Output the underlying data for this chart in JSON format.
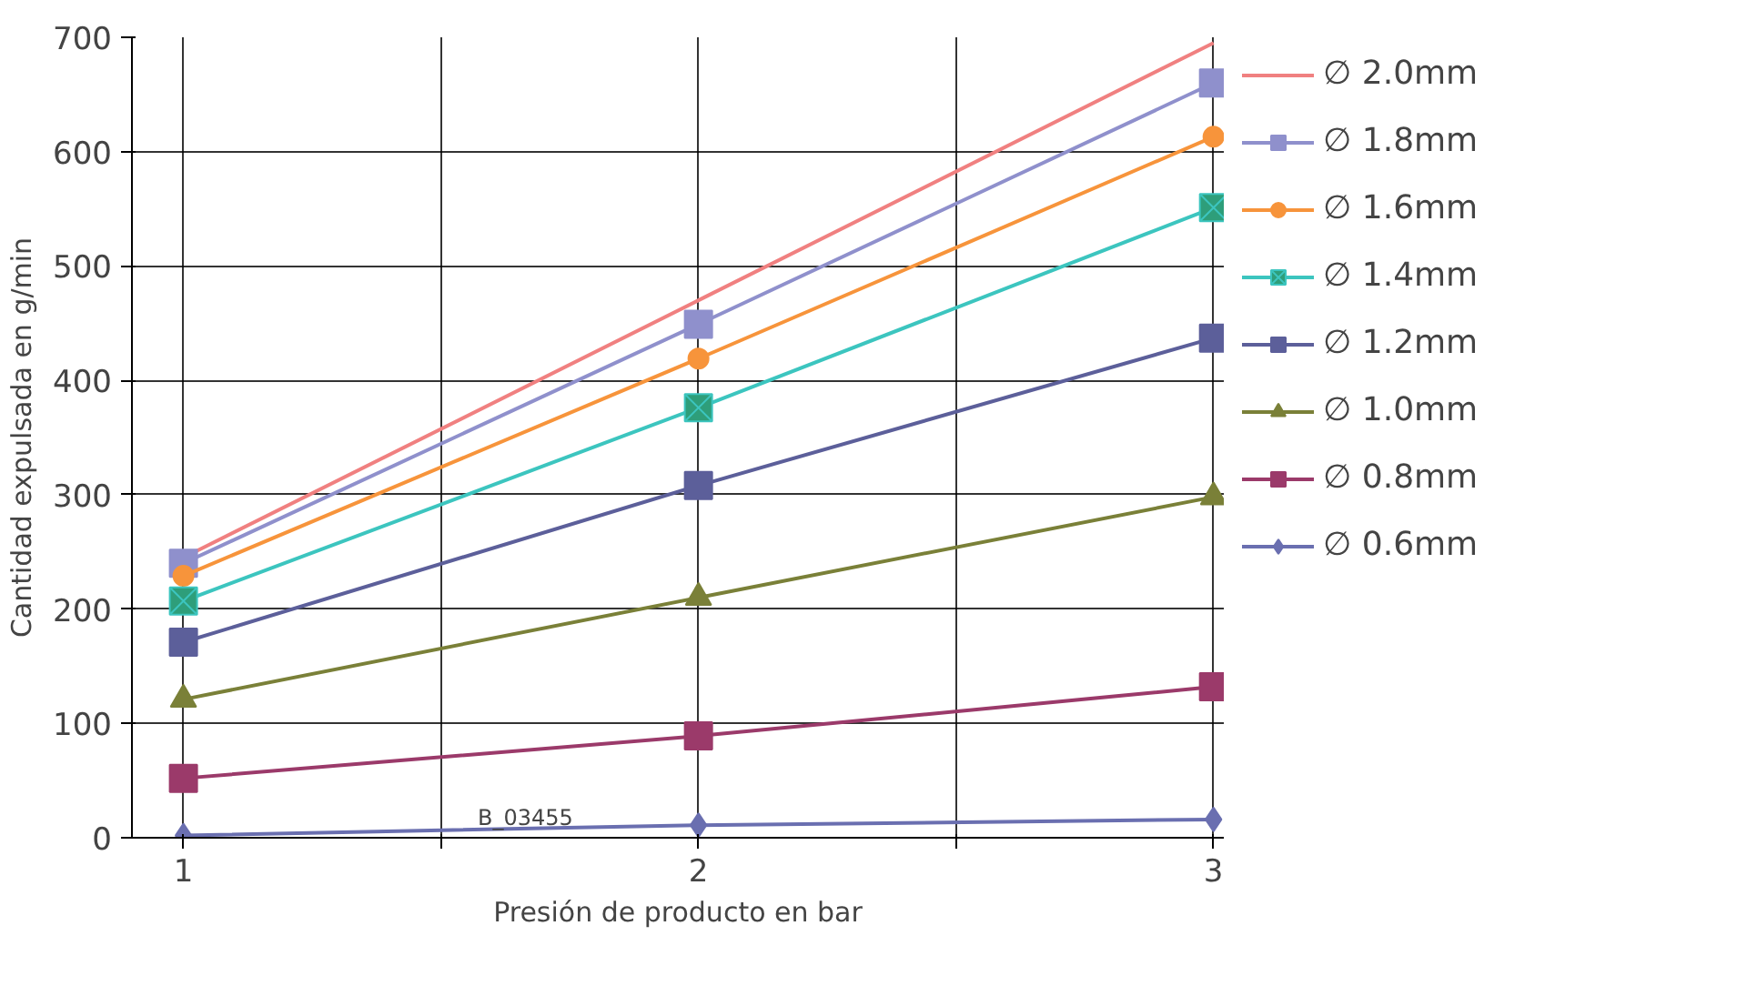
{
  "chart_data": {
    "type": "line",
    "xlabel": "Presión de producto en bar",
    "ylabel": "Cantidad expulsada en g/min",
    "x": [
      1,
      2,
      3
    ],
    "xlim": [
      0.9,
      3.02
    ],
    "xticks": [
      1,
      {
        "value": 1.5,
        "label": null
      },
      2,
      {
        "value": 2.5,
        "label": null
      },
      3
    ],
    "ylim": [
      0,
      700
    ],
    "yticks": [
      0,
      100,
      200,
      300,
      400,
      500,
      600,
      700
    ],
    "grid": true,
    "legend": "right",
    "annotations": [
      "B_03455"
    ],
    "series": [
      {
        "name": "∅ 2.0mm",
        "color": "#f08080",
        "marker": "none",
        "values": [
          245,
          470,
          695
        ]
      },
      {
        "name": "∅ 1.8mm",
        "color": "#8f90cc",
        "marker": "square",
        "values": [
          240,
          449,
          660
        ]
      },
      {
        "name": "∅ 1.6mm",
        "color": "#f7943b",
        "marker": "circle",
        "values": [
          229,
          419,
          613
        ]
      },
      {
        "name": "∅ 1.4mm",
        "color": "#3cc5bf",
        "marker": "cross",
        "values": [
          207,
          376,
          551
        ]
      },
      {
        "name": "∅ 1.2mm",
        "color": "#5c5f9a",
        "marker": "square",
        "values": [
          171,
          308,
          437
        ]
      },
      {
        "name": "∅ 1.0mm",
        "color": "#7a8038",
        "marker": "triangle",
        "values": [
          121,
          210,
          298
        ]
      },
      {
        "name": "∅ 0.8mm",
        "color": "#9b3a6a",
        "marker": "square",
        "values": [
          52,
          89,
          132
        ]
      },
      {
        "name": "∅ 0.6mm",
        "color": "#6a6fb0",
        "marker": "diamond",
        "values": [
          2,
          11,
          16
        ]
      }
    ]
  }
}
